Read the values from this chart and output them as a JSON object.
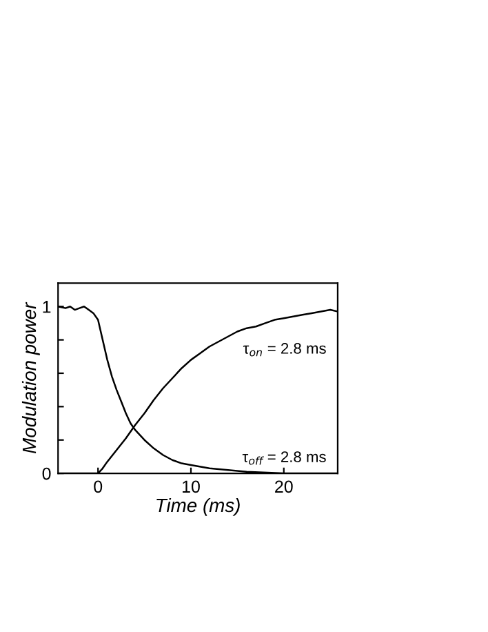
{
  "chart_data": {
    "type": "line",
    "xlabel": "Time (ms)",
    "ylabel": "Modulation power",
    "xlim": [
      -4.3,
      25.8
    ],
    "ylim": [
      0,
      1.14
    ],
    "xticks": [
      0,
      10,
      20
    ],
    "yticks": [
      0,
      {
        "value": 0.2,
        "label": null
      },
      {
        "value": 0.4,
        "label": null
      },
      {
        "value": 0.6,
        "label": null
      },
      {
        "value": 0.8,
        "label": null
      },
      1
    ],
    "grid": false,
    "legend": false,
    "marker": "none",
    "line_style": "solid",
    "series": [
      {
        "color": "#000000",
        "x": [
          -4.3,
          -3.5,
          -3,
          -2.5,
          -2,
          -1.5,
          -1,
          -0.5,
          0,
          0.5,
          1,
          1.5,
          2,
          2.5,
          3,
          3.5,
          4,
          5,
          6,
          7,
          8,
          9,
          10,
          12,
          14,
          16,
          20,
          25.8
        ],
        "values": [
          1.0,
          0.99,
          1.0,
          0.98,
          0.99,
          1.0,
          0.98,
          0.96,
          0.92,
          0.8,
          0.68,
          0.58,
          0.5,
          0.43,
          0.36,
          0.3,
          0.26,
          0.2,
          0.15,
          0.11,
          0.08,
          0.06,
          0.05,
          0.03,
          0.02,
          0.01,
          0.0,
          0.0
        ]
      },
      {
        "color": "#000000",
        "x": [
          -4.3,
          0,
          0.5,
          1,
          2,
          3,
          4,
          5,
          6,
          7,
          8,
          9,
          10,
          11,
          12,
          13,
          14,
          15,
          16,
          17,
          18,
          19,
          20,
          21,
          22,
          23,
          24,
          25,
          25.8
        ],
        "values": [
          0,
          0,
          0.03,
          0.07,
          0.14,
          0.21,
          0.29,
          0.36,
          0.44,
          0.51,
          0.57,
          0.63,
          0.68,
          0.72,
          0.76,
          0.79,
          0.82,
          0.85,
          0.87,
          0.88,
          0.9,
          0.92,
          0.93,
          0.94,
          0.95,
          0.96,
          0.97,
          0.98,
          0.97
        ]
      }
    ],
    "annotations": [
      "τ$_{on}$ = 2.8 ms",
      "τ$_{off}$ = 2.8 ms"
    ]
  }
}
